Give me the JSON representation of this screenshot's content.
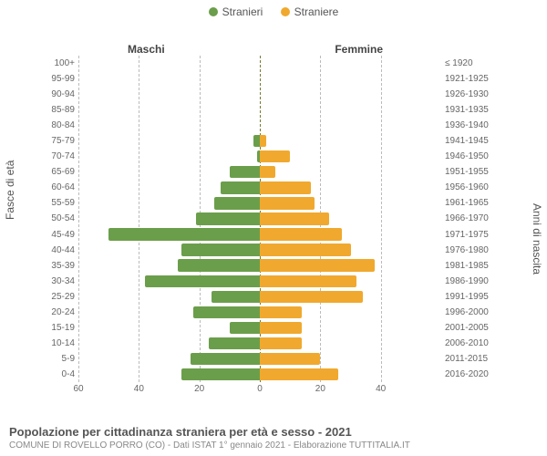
{
  "legend": {
    "male": {
      "label": "Stranieri",
      "color": "#6b9e4a"
    },
    "female": {
      "label": "Straniere",
      "color": "#f0a92e"
    }
  },
  "headers": {
    "left": "Maschi",
    "right": "Femmine"
  },
  "axis_labels": {
    "left": "Fasce di età",
    "right": "Anni di nascita"
  },
  "chart": {
    "type": "population-pyramid",
    "x_max": 60,
    "x_ticks": [
      60,
      40,
      20,
      0,
      20,
      40
    ],
    "grid_color": "#bbbbbb",
    "center_color": "#7a7a2e",
    "background_color": "#ffffff",
    "male_color": "#6b9e4a",
    "female_color": "#f0a92e",
    "rows": [
      {
        "age": "100+",
        "birth": "≤ 1920",
        "m": 0,
        "f": 0
      },
      {
        "age": "95-99",
        "birth": "1921-1925",
        "m": 0,
        "f": 0
      },
      {
        "age": "90-94",
        "birth": "1926-1930",
        "m": 0,
        "f": 0
      },
      {
        "age": "85-89",
        "birth": "1931-1935",
        "m": 0,
        "f": 0
      },
      {
        "age": "80-84",
        "birth": "1936-1940",
        "m": 0,
        "f": 0
      },
      {
        "age": "75-79",
        "birth": "1941-1945",
        "m": 2,
        "f": 2
      },
      {
        "age": "70-74",
        "birth": "1946-1950",
        "m": 1,
        "f": 10
      },
      {
        "age": "65-69",
        "birth": "1951-1955",
        "m": 10,
        "f": 5
      },
      {
        "age": "60-64",
        "birth": "1956-1960",
        "m": 13,
        "f": 17
      },
      {
        "age": "55-59",
        "birth": "1961-1965",
        "m": 15,
        "f": 18
      },
      {
        "age": "50-54",
        "birth": "1966-1970",
        "m": 21,
        "f": 23
      },
      {
        "age": "45-49",
        "birth": "1971-1975",
        "m": 50,
        "f": 27
      },
      {
        "age": "40-44",
        "birth": "1976-1980",
        "m": 26,
        "f": 30
      },
      {
        "age": "35-39",
        "birth": "1981-1985",
        "m": 27,
        "f": 38
      },
      {
        "age": "30-34",
        "birth": "1986-1990",
        "m": 38,
        "f": 32
      },
      {
        "age": "25-29",
        "birth": "1991-1995",
        "m": 16,
        "f": 34
      },
      {
        "age": "20-24",
        "birth": "1996-2000",
        "m": 22,
        "f": 14
      },
      {
        "age": "15-19",
        "birth": "2001-2005",
        "m": 10,
        "f": 14
      },
      {
        "age": "10-14",
        "birth": "2006-2010",
        "m": 17,
        "f": 14
      },
      {
        "age": "5-9",
        "birth": "2011-2015",
        "m": 23,
        "f": 20
      },
      {
        "age": "0-4",
        "birth": "2016-2020",
        "m": 26,
        "f": 26
      }
    ]
  },
  "footer": {
    "title": "Popolazione per cittadinanza straniera per età e sesso - 2021",
    "subtitle": "COMUNE DI ROVELLO PORRO (CO) - Dati ISTAT 1° gennaio 2021 - Elaborazione TUTTITALIA.IT"
  }
}
